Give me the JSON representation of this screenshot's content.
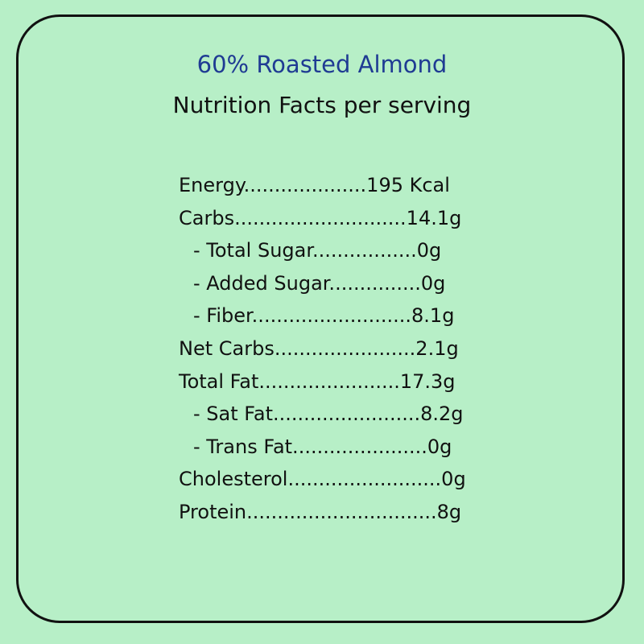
{
  "panel": {
    "product_title": "60% Roasted Almond",
    "subtitle": "Nutrition Facts per serving",
    "rows": [
      {
        "text": "Energy....................195 Kcal",
        "indent": false
      },
      {
        "text": "Carbs............................14.1g",
        "indent": false
      },
      {
        "text": "- Total Sugar.................0g",
        "indent": true
      },
      {
        "text": "- Added Sugar...............0g",
        "indent": true
      },
      {
        "text": "- Fiber..........................8.1g",
        "indent": true
      },
      {
        "text": "Net Carbs.......................2.1g",
        "indent": false
      },
      {
        "text": "Total Fat.......................17.3g",
        "indent": false
      },
      {
        "text": "- Sat Fat........................8.2g",
        "indent": true
      },
      {
        "text": "- Trans Fat......................0g",
        "indent": true
      },
      {
        "text": "Cholesterol.........................0g",
        "indent": false
      },
      {
        "text": "Protein...............................8g",
        "indent": false
      }
    ]
  },
  "colors": {
    "background": "#b7efc7",
    "title": "#1f3b93",
    "text": "#111111",
    "border": "#111111"
  }
}
